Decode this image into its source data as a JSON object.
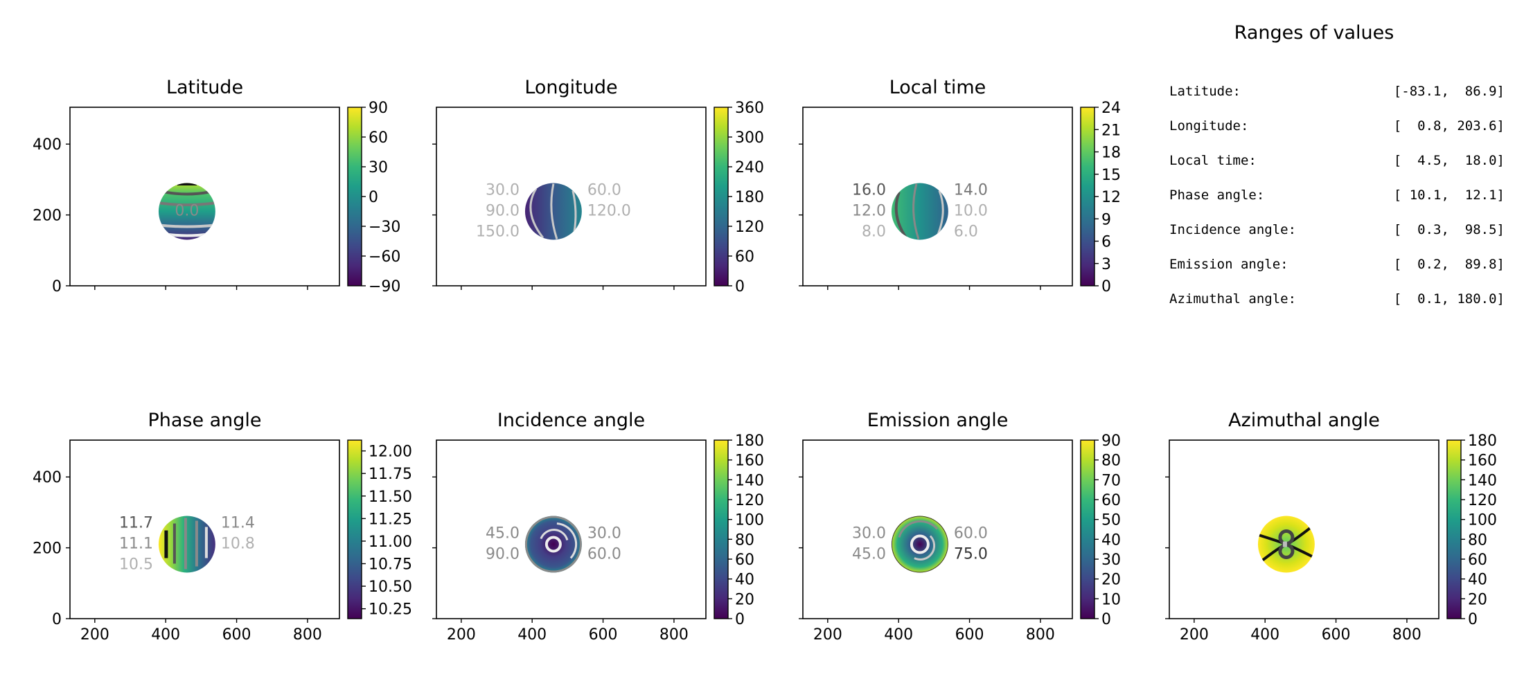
{
  "chart_data": {
    "type": "heatmap",
    "colormap": "viridis",
    "colors": [
      "#440154",
      "#482878",
      "#3e4989",
      "#31688e",
      "#26828e",
      "#1f9e89",
      "#35b779",
      "#6ece58",
      "#b5de2b",
      "#fde725"
    ],
    "xlim": [
      130,
      890
    ],
    "ylim": [
      0,
      504
    ],
    "xticks": [
      "200",
      "400",
      "600",
      "800"
    ],
    "xtick_values": [
      200,
      400,
      600,
      800
    ],
    "yticks": [
      "0",
      "200",
      "400"
    ],
    "ytick_values": [
      0,
      200,
      400
    ],
    "disc": {
      "cx": 460,
      "cy": 210,
      "r": 80
    },
    "panels": [
      {
        "title": "Latitude",
        "vmin": -90,
        "vmax": 90,
        "ticks": [
          -90,
          -60,
          -30,
          0,
          30,
          60,
          90
        ],
        "tick_labels": [
          "−90",
          "−60",
          "−30",
          "0",
          "30",
          "60",
          "90"
        ],
        "contour_labels": [
          "0.0"
        ]
      },
      {
        "title": "Longitude",
        "vmin": 0,
        "vmax": 360,
        "ticks": [
          0,
          60,
          120,
          180,
          240,
          300,
          360
        ],
        "tick_labels": [
          "0",
          "60",
          "120",
          "180",
          "240",
          "300",
          "360"
        ],
        "contour_labels": [
          "30.0",
          "60.0",
          "90.0",
          "120.0",
          "150.0"
        ]
      },
      {
        "title": "Local time",
        "vmin": 0,
        "vmax": 24,
        "ticks": [
          0,
          3,
          6,
          9,
          12,
          15,
          18,
          21,
          24
        ],
        "tick_labels": [
          "0",
          "3",
          "6",
          "9",
          "12",
          "15",
          "18",
          "21",
          "24"
        ],
        "contour_labels": [
          "16.0",
          "14.0",
          "12.0",
          "10.0",
          "8.0",
          "6.0"
        ]
      },
      {
        "title": "Phase angle",
        "vmin": 10.14,
        "vmax": 12.12,
        "ticks": [
          10.25,
          10.5,
          10.75,
          11.0,
          11.25,
          11.5,
          11.75,
          12.0
        ],
        "tick_labels": [
          "10.25",
          "10.50",
          "10.75",
          "11.00",
          "11.25",
          "11.50",
          "11.75",
          "12.00"
        ],
        "contour_labels": [
          "11.7",
          "11.4",
          "11.1",
          "10.8",
          "10.5"
        ]
      },
      {
        "title": "Incidence angle",
        "vmin": 0,
        "vmax": 180,
        "ticks": [
          0,
          20,
          40,
          60,
          80,
          100,
          120,
          140,
          160,
          180
        ],
        "tick_labels": [
          "0",
          "20",
          "40",
          "60",
          "80",
          "100",
          "120",
          "140",
          "160",
          "180"
        ],
        "contour_labels": [
          "45.0",
          "30.0",
          "90.0",
          "60.0"
        ]
      },
      {
        "title": "Emission angle",
        "vmin": 0,
        "vmax": 90,
        "ticks": [
          0,
          10,
          20,
          30,
          40,
          50,
          60,
          70,
          80,
          90
        ],
        "tick_labels": [
          "0",
          "10",
          "20",
          "30",
          "40",
          "50",
          "60",
          "70",
          "80",
          "90"
        ],
        "contour_labels": [
          "30.0",
          "60.0",
          "45.0",
          "75.0"
        ]
      },
      {
        "title": "Azimuthal angle",
        "vmin": 0,
        "vmax": 180,
        "ticks": [
          0,
          20,
          40,
          60,
          80,
          100,
          120,
          140,
          160,
          180
        ],
        "tick_labels": [
          "0",
          "20",
          "40",
          "60",
          "80",
          "100",
          "120",
          "140",
          "160",
          "180"
        ],
        "contour_labels": []
      }
    ],
    "ranges": {
      "title": "Ranges of values",
      "rows": [
        {
          "label": "Latitude:",
          "value": "[-83.1,  86.9]",
          "min": -83.1,
          "max": 86.9
        },
        {
          "label": "Longitude:",
          "value": "[  0.8, 203.6]",
          "min": 0.8,
          "max": 203.6
        },
        {
          "label": "Local time:",
          "value": "[  4.5,  18.0]",
          "min": 4.5,
          "max": 18.0
        },
        {
          "label": "Phase angle:",
          "value": "[ 10.1,  12.1]",
          "min": 10.1,
          "max": 12.1
        },
        {
          "label": "Incidence angle:",
          "value": "[  0.3,  98.5]",
          "min": 0.3,
          "max": 98.5
        },
        {
          "label": "Emission angle:",
          "value": "[  0.2,  89.8]",
          "min": 0.2,
          "max": 89.8
        },
        {
          "label": "Azimuthal angle:",
          "value": "[  0.1, 180.0]",
          "min": 0.1,
          "max": 180.0
        }
      ]
    }
  }
}
